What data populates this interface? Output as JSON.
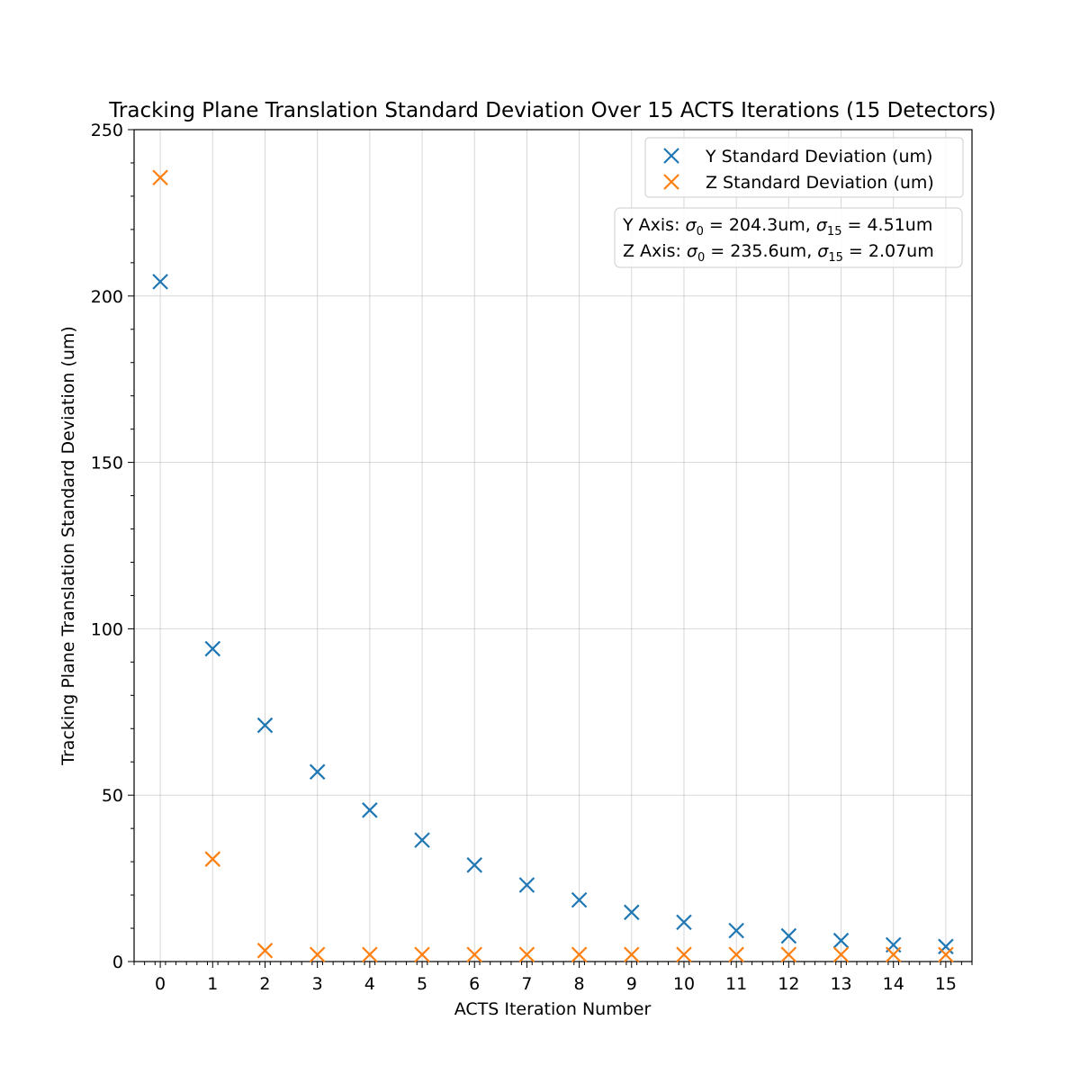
{
  "chart_data": {
    "type": "scatter",
    "title": "Tracking Plane Translation Standard Deviation Over 15 ACTS Iterations (15 Detectors)",
    "xlabel": "ACTS Iteration Number",
    "ylabel": "Tracking Plane Translation Standard Deviation (um)",
    "xlim": [
      -0.5,
      15.5
    ],
    "ylim": [
      0,
      250
    ],
    "xticks": [
      0,
      1,
      2,
      3,
      4,
      5,
      6,
      7,
      8,
      9,
      10,
      11,
      12,
      13,
      14,
      15
    ],
    "yticks": [
      0,
      50,
      100,
      150,
      200,
      250
    ],
    "xtick_labels": [
      "0",
      "1",
      "2",
      "3",
      "4",
      "5",
      "6",
      "7",
      "8",
      "9",
      "10",
      "11",
      "12",
      "13",
      "14",
      "15"
    ],
    "ytick_labels": [
      "0",
      "50",
      "100",
      "150",
      "200",
      "250"
    ],
    "grid": true,
    "marker": "x",
    "legend_position": "top-right",
    "x": [
      0,
      1,
      2,
      3,
      4,
      5,
      6,
      7,
      8,
      9,
      10,
      11,
      12,
      13,
      14,
      15
    ],
    "series": [
      {
        "name": "Y Standard Deviation (um)",
        "color": "#1f77b4",
        "values": [
          204.3,
          94.0,
          71.0,
          57.0,
          45.5,
          36.5,
          29.0,
          23.0,
          18.5,
          14.8,
          11.8,
          9.3,
          7.7,
          6.3,
          5.0,
          4.51
        ]
      },
      {
        "name": "Z Standard Deviation (um)",
        "color": "#ff7f0e",
        "values": [
          235.6,
          30.8,
          3.3,
          2.1,
          2.1,
          2.1,
          2.1,
          2.1,
          2.1,
          2.1,
          2.1,
          2.1,
          2.1,
          2.1,
          2.1,
          2.07
        ]
      }
    ],
    "annotation": {
      "lines": [
        {
          "prefix": "Y Axis: ",
          "s0_value": "204.3um",
          "s15_value": "4.51um"
        },
        {
          "prefix": "Z Axis: ",
          "s0_value": "235.6um",
          "s15_value": "2.07um"
        }
      ],
      "sigma_symbol": "σ",
      "sub_0": "0",
      "sub_15": "15",
      "equals": " = ",
      "separator": ", "
    }
  }
}
